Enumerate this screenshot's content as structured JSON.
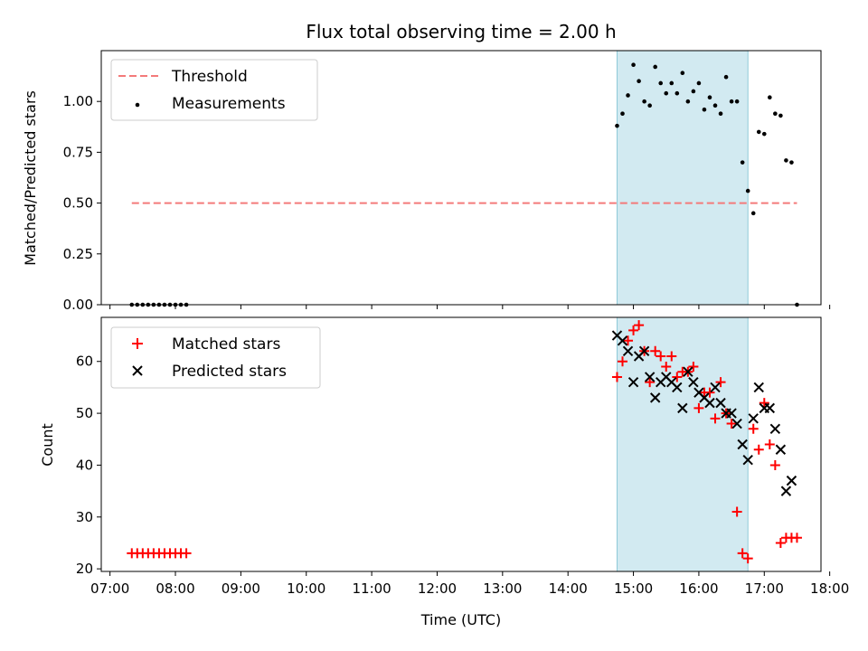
{
  "chart_data": {
    "title": "Flux total observing time = 2.00 h",
    "xlabel": "Time (UTC)",
    "x_ticks": [
      "07:00",
      "08:00",
      "09:00",
      "10:00",
      "11:00",
      "12:00",
      "13:00",
      "14:00",
      "15:00",
      "16:00",
      "17:00",
      "18:00"
    ],
    "xlim": [
      "06:52",
      "17:52"
    ],
    "shaded_interval": [
      "14:45",
      "16:45"
    ],
    "colors": {
      "threshold": "#f47a7a",
      "measurements": "#000000",
      "matched": "#ff0000",
      "predicted": "#000000",
      "shade": "#add8e6"
    },
    "panels": [
      {
        "type": "scatter",
        "ylabel": "Matched/Predicted stars",
        "ylim": [
          0,
          1.25
        ],
        "y_ticks": [
          "0.00",
          "0.25",
          "0.50",
          "0.75",
          "1.00"
        ],
        "legend_placement": "top-left",
        "threshold": {
          "name": "Threshold",
          "value": 0.5,
          "x": [
            "07:20",
            "17:30"
          ]
        },
        "series": [
          {
            "name": "Measurements",
            "marker": "dot",
            "x": [
              "07:20",
              "07:25",
              "07:30",
              "07:35",
              "07:40",
              "07:45",
              "07:50",
              "07:55",
              "08:00",
              "08:05",
              "08:10",
              "14:45",
              "14:50",
              "14:55",
              "15:00",
              "15:05",
              "15:10",
              "15:15",
              "15:20",
              "15:25",
              "15:30",
              "15:35",
              "15:40",
              "15:45",
              "15:50",
              "15:55",
              "16:00",
              "16:05",
              "16:10",
              "16:15",
              "16:20",
              "16:25",
              "16:30",
              "16:35",
              "16:40",
              "16:45",
              "16:50",
              "16:55",
              "17:00",
              "17:05",
              "17:10",
              "17:15",
              "17:20",
              "17:25",
              "17:30"
            ],
            "y": [
              0,
              0,
              0,
              0,
              0,
              0,
              0,
              0,
              0,
              0,
              0,
              0.88,
              0.94,
              1.03,
              1.18,
              1.1,
              1.0,
              0.98,
              1.17,
              1.09,
              1.04,
              1.09,
              1.04,
              1.14,
              1.0,
              1.05,
              1.09,
              0.96,
              1.02,
              0.98,
              0.94,
              1.12,
              1.0,
              1.0,
              0.7,
              0.56,
              0.45,
              0.85,
              0.84,
              1.02,
              0.94,
              0.93,
              0.71,
              0.7,
              0
            ]
          }
        ]
      },
      {
        "type": "scatter",
        "ylabel": "Count",
        "ylim": [
          19.5,
          68.5
        ],
        "y_ticks": [
          "20",
          "30",
          "40",
          "50",
          "60"
        ],
        "legend_placement": "top-left",
        "series": [
          {
            "name": "Matched stars",
            "marker": "plus",
            "x": [
              "07:20",
              "07:25",
              "07:30",
              "07:35",
              "07:40",
              "07:45",
              "07:50",
              "07:55",
              "08:00",
              "08:05",
              "08:10",
              "14:45",
              "14:50",
              "14:55",
              "15:00",
              "15:05",
              "15:10",
              "15:15",
              "15:20",
              "15:25",
              "15:30",
              "15:35",
              "15:40",
              "15:45",
              "15:50",
              "15:55",
              "16:00",
              "16:05",
              "16:10",
              "16:15",
              "16:20",
              "16:25",
              "16:30",
              "16:35",
              "16:40",
              "16:45",
              "16:50",
              "16:55",
              "17:00",
              "17:05",
              "17:10",
              "17:15",
              "17:20",
              "17:25",
              "17:30"
            ],
            "y": [
              23,
              23,
              23,
              23,
              23,
              23,
              23,
              23,
              23,
              23,
              23,
              57,
              60,
              64,
              66,
              67,
              62,
              56,
              62,
              61,
              59,
              61,
              57,
              58,
              58,
              59,
              51,
              54,
              54,
              49,
              56,
              50,
              48,
              31,
              23,
              22,
              47,
              43,
              52,
              44,
              40,
              25,
              26,
              26,
              26
            ]
          },
          {
            "name": "Predicted stars",
            "marker": "x",
            "x": [
              "14:45",
              "14:50",
              "14:55",
              "15:00",
              "15:05",
              "15:10",
              "15:15",
              "15:20",
              "15:25",
              "15:30",
              "15:35",
              "15:40",
              "15:45",
              "15:50",
              "15:55",
              "16:00",
              "16:05",
              "16:10",
              "16:15",
              "16:20",
              "16:25",
              "16:30",
              "16:35",
              "16:40",
              "16:45",
              "16:50",
              "16:55",
              "17:00",
              "17:05",
              "17:10",
              "17:15",
              "17:20",
              "17:25"
            ],
            "y": [
              65,
              64,
              62,
              56,
              61,
              62,
              57,
              53,
              56,
              57,
              56,
              55,
              51,
              58,
              56,
              54,
              53,
              52,
              55,
              52,
              50,
              50,
              48,
              44,
              41,
              49,
              55,
              51,
              51,
              47,
              43,
              35,
              37
            ]
          }
        ]
      }
    ]
  }
}
